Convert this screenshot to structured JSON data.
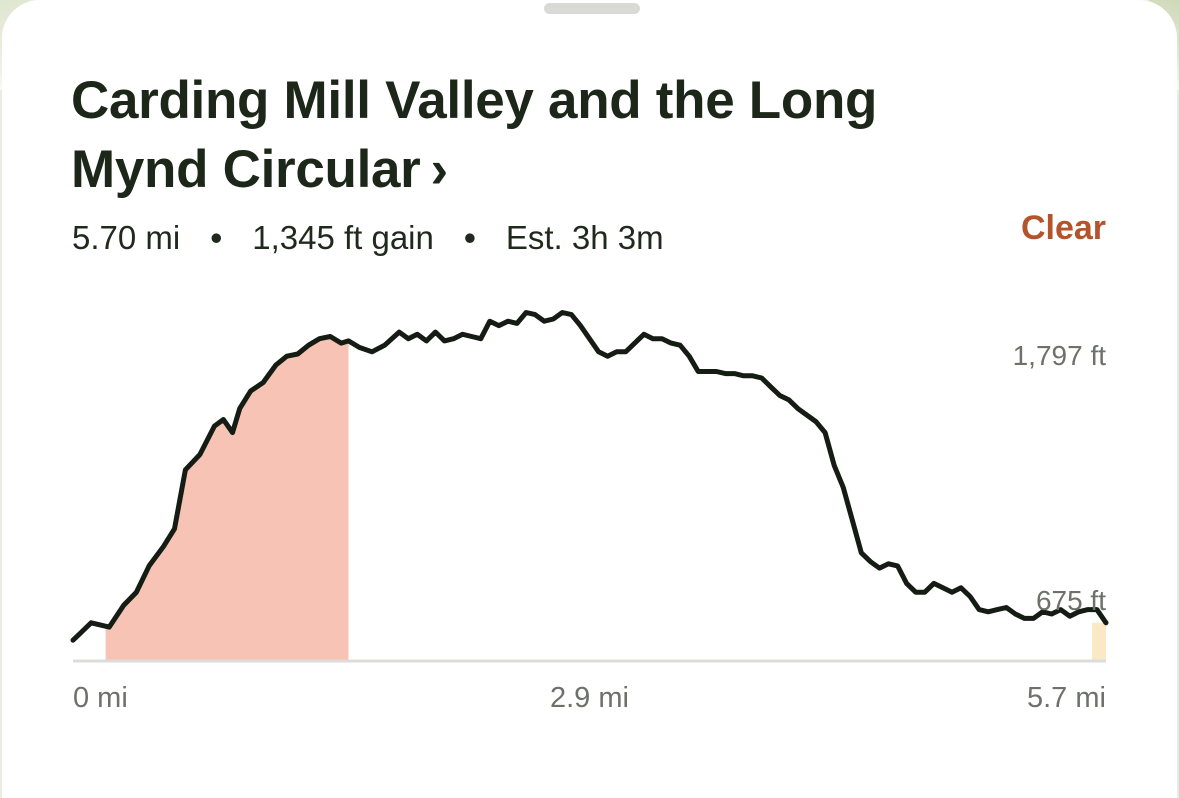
{
  "trail": {
    "title": "Carding Mill Valley and the Long Mynd Circular",
    "chevron": "›",
    "distance": "5.70 mi",
    "gain": "1,345 ft gain",
    "estimate": "Est. 3h 3m",
    "separator": "•",
    "clear_label": "Clear"
  },
  "colors": {
    "line": "#151c14",
    "selection": "#f6c3b4",
    "marker": "#fbe8c4",
    "baseline": "#dcdcda",
    "accent": "#b4542b"
  },
  "chart_data": {
    "type": "area",
    "title": "",
    "xlabel": "",
    "ylabel": "",
    "y_tick_labels": [
      "1,797 ft",
      "675 ft"
    ],
    "y_ticks": [
      1797,
      675
    ],
    "x_tick_labels": [
      "0 mi",
      "2.9 mi",
      "5.7 mi"
    ],
    "xlim": [
      0,
      5.7
    ],
    "ylim": [
      405,
      2025
    ],
    "selection": [
      0.18,
      1.52
    ],
    "series": [
      {
        "x": [
          0,
          0.05,
          0.1,
          0.2,
          0.28,
          0.35,
          0.42,
          0.5,
          0.56,
          0.62,
          0.7,
          0.78,
          0.83,
          0.88,
          0.92,
          0.98,
          1.05,
          1.12,
          1.18,
          1.24,
          1.3,
          1.36,
          1.42,
          1.48,
          1.52,
          1.58,
          1.65,
          1.72,
          1.8,
          1.85,
          1.9,
          1.95,
          2.0,
          2.05,
          2.1,
          2.15,
          2.2,
          2.25,
          2.3,
          2.35,
          2.4,
          2.45,
          2.5,
          2.55,
          2.6,
          2.65,
          2.7,
          2.75,
          2.8,
          2.85,
          2.9,
          2.95,
          3.0,
          3.05,
          3.1,
          3.15,
          3.2,
          3.25,
          3.3,
          3.35,
          3.4,
          3.45,
          3.5,
          3.55,
          3.6,
          3.65,
          3.7,
          3.75,
          3.8,
          3.85,
          3.9,
          3.95,
          4.0,
          4.05,
          4.1,
          4.15,
          4.2,
          4.25,
          4.3,
          4.35,
          4.4,
          4.45,
          4.5,
          4.55,
          4.6,
          4.65,
          4.7,
          4.75,
          4.8,
          4.85,
          4.9,
          4.95,
          5.0,
          5.05,
          5.1,
          5.15,
          5.2,
          5.25,
          5.3,
          5.35,
          5.4,
          5.45,
          5.5,
          5.55,
          5.6,
          5.65,
          5.7
        ],
        "values": [
          500,
          540,
          580,
          560,
          660,
          720,
          840,
          930,
          1010,
          1280,
          1350,
          1480,
          1510,
          1450,
          1560,
          1640,
          1680,
          1760,
          1800,
          1810,
          1850,
          1880,
          1890,
          1860,
          1870,
          1840,
          1820,
          1850,
          1910,
          1880,
          1900,
          1870,
          1910,
          1870,
          1880,
          1900,
          1890,
          1880,
          1960,
          1940,
          1960,
          1950,
          2000,
          1990,
          1960,
          1970,
          2000,
          1990,
          1940,
          1880,
          1820,
          1800,
          1820,
          1820,
          1860,
          1900,
          1880,
          1880,
          1860,
          1850,
          1800,
          1730,
          1730,
          1730,
          1720,
          1720,
          1710,
          1710,
          1700,
          1660,
          1620,
          1600,
          1560,
          1530,
          1500,
          1450,
          1300,
          1200,
          1050,
          900,
          860,
          830,
          850,
          840,
          760,
          720,
          720,
          760,
          740,
          720,
          740,
          700,
          640,
          630,
          640,
          650,
          620,
          600,
          600,
          630,
          620,
          640,
          610,
          630,
          640,
          640,
          580
        ]
      }
    ]
  }
}
